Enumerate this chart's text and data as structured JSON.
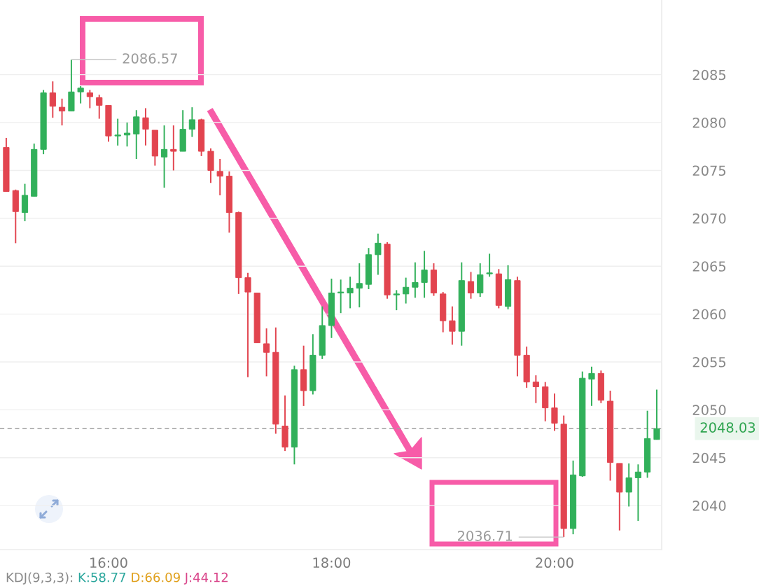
{
  "chart_data": {
    "type": "candlestick",
    "x": [
      15.083,
      15.167,
      15.25,
      15.333,
      15.417,
      15.5,
      15.583,
      15.667,
      15.75,
      15.833,
      15.917,
      16,
      16.083,
      16.167,
      16.25,
      16.333,
      16.417,
      16.5,
      16.583,
      16.667,
      16.75,
      16.833,
      16.917,
      17,
      17.083,
      17.167,
      17.25,
      17.333,
      17.417,
      17.5,
      17.583,
      17.667,
      17.75,
      17.833,
      17.917,
      18,
      18.083,
      18.167,
      18.25,
      18.333,
      18.417,
      18.5,
      18.583,
      18.667,
      18.75,
      18.833,
      18.917,
      19,
      19.083,
      19.167,
      19.25,
      19.333,
      19.417,
      19.5,
      19.583,
      19.667,
      19.75,
      19.833,
      19.917,
      20,
      20.083,
      20.167,
      20.25,
      20.333,
      20.417,
      20.5,
      20.583,
      20.667,
      20.75,
      20.833,
      20.917
    ],
    "ohlc": [
      [
        2077.4,
        2078.4,
        2072.8,
        2072.8
      ],
      [
        2072.9,
        2073.0,
        2067.4,
        2070.7
      ],
      [
        2070.6,
        2073.6,
        2069.7,
        2072.4
      ],
      [
        2072.3,
        2077.8,
        2072.3,
        2077.2
      ],
      [
        2077.2,
        2083.4,
        2076.7,
        2083.1
      ],
      [
        2083.1,
        2084.3,
        2080.5,
        2081.7
      ],
      [
        2081.6,
        2082.5,
        2079.7,
        2081.2
      ],
      [
        2081.2,
        2086.57,
        2081.2,
        2083.2
      ],
      [
        2083.2,
        2083.8,
        2082.0,
        2083.6
      ],
      [
        2083.1,
        2083.4,
        2081.5,
        2082.7
      ],
      [
        2082.6,
        2082.9,
        2080.4,
        2081.8
      ],
      [
        2081.8,
        2081.8,
        2078.0,
        2078.6
      ],
      [
        2078.6,
        2080.4,
        2077.6,
        2078.7
      ],
      [
        2078.7,
        2080.0,
        2077.5,
        2078.9
      ],
      [
        2078.8,
        2081.3,
        2076.2,
        2080.6
      ],
      [
        2080.5,
        2081.5,
        2077.6,
        2079.3
      ],
      [
        2079.2,
        2079.2,
        2075.5,
        2076.5
      ],
      [
        2076.4,
        2079.7,
        2073.2,
        2077.2
      ],
      [
        2077.2,
        2079.7,
        2075.0,
        2077.0
      ],
      [
        2077.0,
        2081.3,
        2077.0,
        2079.3
      ],
      [
        2079.3,
        2081.6,
        2078.5,
        2080.3
      ],
      [
        2080.3,
        2080.4,
        2076.5,
        2077.0
      ],
      [
        2077.0,
        2077.3,
        2073.7,
        2075.0
      ],
      [
        2074.9,
        2076.2,
        2072.4,
        2074.4
      ],
      [
        2074.4,
        2074.9,
        2068.5,
        2070.6
      ],
      [
        2070.6,
        2070.7,
        2062.1,
        2063.8
      ],
      [
        2063.8,
        2064.3,
        2053.4,
        2062.3
      ],
      [
        2062.2,
        2062.2,
        2057.0,
        2057.0
      ],
      [
        2056.9,
        2058.5,
        2053.5,
        2056.0
      ],
      [
        2056.0,
        2058.6,
        2047.5,
        2048.5
      ],
      [
        2048.3,
        2051.5,
        2045.7,
        2046.1
      ],
      [
        2046.1,
        2054.6,
        2044.3,
        2054.2
      ],
      [
        2054.2,
        2056.7,
        2050.4,
        2052.0
      ],
      [
        2052.0,
        2057.9,
        2051.6,
        2055.7
      ],
      [
        2055.7,
        2060.8,
        2055.3,
        2058.8
      ],
      [
        2058.8,
        2063.7,
        2057.5,
        2062.2
      ],
      [
        2062.2,
        2063.6,
        2060.1,
        2062.3
      ],
      [
        2062.2,
        2063.9,
        2060.6,
        2062.7
      ],
      [
        2062.7,
        2065.3,
        2060.7,
        2063.2
      ],
      [
        2063.1,
        2066.9,
        2062.6,
        2066.2
      ],
      [
        2066.2,
        2068.4,
        2064.1,
        2067.4
      ],
      [
        2067.3,
        2067.5,
        2061.6,
        2062.0
      ],
      [
        2062.0,
        2062.5,
        2060.4,
        2062.1
      ],
      [
        2062.1,
        2063.8,
        2061.1,
        2062.8
      ],
      [
        2062.8,
        2065.4,
        2061.7,
        2063.3
      ],
      [
        2063.3,
        2066.6,
        2061.7,
        2064.6
      ],
      [
        2064.6,
        2065.3,
        2061.9,
        2062.2
      ],
      [
        2062.1,
        2062.3,
        2058.1,
        2059.3
      ],
      [
        2059.3,
        2060.8,
        2056.8,
        2058.2
      ],
      [
        2058.2,
        2065.4,
        2056.7,
        2063.5
      ],
      [
        2063.4,
        2064.4,
        2061.6,
        2062.2
      ],
      [
        2062.2,
        2065.3,
        2061.8,
        2064.1
      ],
      [
        2064.2,
        2066.3,
        2063.9,
        2064.3
      ],
      [
        2064.2,
        2064.7,
        2060.6,
        2060.9
      ],
      [
        2060.8,
        2065.1,
        2060.5,
        2063.6
      ],
      [
        2063.5,
        2063.9,
        2053.5,
        2055.7
      ],
      [
        2055.7,
        2056.6,
        2052.3,
        2052.9
      ],
      [
        2052.9,
        2053.6,
        2050.7,
        2052.4
      ],
      [
        2052.4,
        2052.9,
        2048.8,
        2050.2
      ],
      [
        2050.2,
        2051.7,
        2047.8,
        2048.6
      ],
      [
        2048.5,
        2049.4,
        2036.71,
        2037.6
      ],
      [
        2037.6,
        2044.7,
        2037.0,
        2043.2
      ],
      [
        2043.1,
        2054.0,
        2043.0,
        2053.3
      ],
      [
        2053.2,
        2054.5,
        2050.4,
        2053.8
      ],
      [
        2053.8,
        2054.1,
        2050.7,
        2051.0
      ],
      [
        2050.9,
        2052.0,
        2042.6,
        2044.5
      ],
      [
        2044.4,
        2044.4,
        2037.4,
        2041.4
      ],
      [
        2041.4,
        2044.4,
        2039.9,
        2042.9
      ],
      [
        2042.9,
        2044.3,
        2038.4,
        2043.5
      ],
      [
        2043.5,
        2049.9,
        2042.9,
        2047.0
      ],
      [
        2046.9,
        2052.1,
        2046.9,
        2048.03
      ]
    ],
    "colors": [
      "#e2444f",
      "#e2444f",
      "#31b05a",
      "#31b05a",
      "#31b05a",
      "#e2444f",
      "#e2444f",
      "#31b05a",
      "#31b05a",
      "#e2444f",
      "#e2444f",
      "#e2444f",
      "#31b05a",
      "#31b05a",
      "#31b05a",
      "#e2444f",
      "#e2444f",
      "#31b05a",
      "#e2444f",
      "#31b05a",
      "#31b05a",
      "#e2444f",
      "#e2444f",
      "#e2444f",
      "#e2444f",
      "#e2444f",
      "#e2444f",
      "#e2444f",
      "#e2444f",
      "#e2444f",
      "#e2444f",
      "#31b05a",
      "#e2444f",
      "#31b05a",
      "#31b05a",
      "#31b05a",
      "#31b05a",
      "#31b05a",
      "#31b05a",
      "#31b05a",
      "#31b05a",
      "#e2444f",
      "#31b05a",
      "#31b05a",
      "#31b05a",
      "#31b05a",
      "#e2444f",
      "#e2444f",
      "#e2444f",
      "#31b05a",
      "#e2444f",
      "#31b05a",
      "#31b05a",
      "#e2444f",
      "#31b05a",
      "#e2444f",
      "#e2444f",
      "#e2444f",
      "#e2444f",
      "#e2444f",
      "#e2444f",
      "#31b05a",
      "#31b05a",
      "#31b05a",
      "#e2444f",
      "#e2444f",
      "#e2444f",
      "#31b05a",
      "#31b05a",
      "#31b05a",
      "#31b05a"
    ],
    "xlim": [
      15.027,
      20.961
    ],
    "xticks": [
      {
        "value": 16,
        "label": "16:00"
      },
      {
        "value": 18,
        "label": "18:00"
      },
      {
        "value": 20,
        "label": "20:00"
      }
    ],
    "ylim": [
      2035.4,
      2092.8
    ],
    "yticks": [
      2040,
      2045,
      2050,
      2055,
      2060,
      2065,
      2070,
      2075,
      2080,
      2085
    ],
    "grid": "y",
    "ref_lines": [
      {
        "axis": "y",
        "value": 2048.03,
        "label": "2048.03",
        "color": "#a0a0a0",
        "line_style": "dashed"
      }
    ],
    "annotations": [
      {
        "text": "2086.57",
        "x": 15.667,
        "y": 2086.57
      },
      {
        "text": "2036.71",
        "x": 20.083,
        "y": 2036.71
      },
      "KDJ(9,3,3):",
      "K:58.77",
      "D:66.09",
      "J:44.12"
    ]
  }
}
